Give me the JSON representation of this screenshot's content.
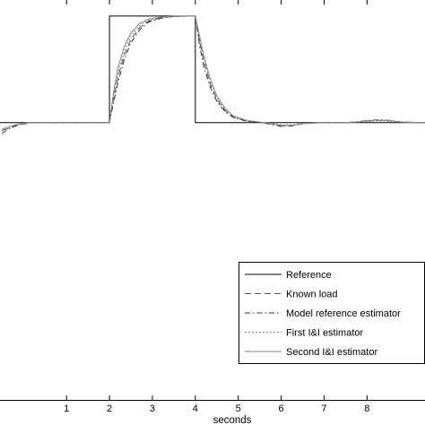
{
  "chart_data": {
    "type": "line",
    "xlabel": "seconds",
    "ylabel": "",
    "title": "",
    "xlim": [
      -0.55,
      9.35
    ],
    "ylim": [
      -2.6,
      1.15
    ],
    "xticks": [
      1,
      2,
      3,
      4,
      5,
      6,
      7,
      8
    ],
    "xtick_labels": [
      "1",
      "2",
      "3",
      "4",
      "5",
      "6",
      "7",
      "8"
    ],
    "grid": false,
    "legend_position": "bottom-right",
    "series": [
      {
        "name": "Reference",
        "style": "solid-thin",
        "x": [
          -0.55,
          2.0,
          2.0,
          4.0,
          4.0,
          9.35
        ],
        "y": [
          0,
          0,
          1,
          1,
          0,
          0
        ]
      },
      {
        "name": "Known load",
        "style": "dashed",
        "x": [
          -0.5,
          -0.3,
          -0.1,
          0.2,
          1.0,
          2.0,
          2.1,
          2.2,
          2.35,
          2.5,
          2.7,
          2.9,
          3.2,
          3.5,
          4.0,
          4.1,
          4.2,
          4.35,
          4.5,
          4.7,
          4.9,
          5.2,
          5.5,
          5.75,
          6.0,
          6.25,
          6.5,
          7.0,
          7.5,
          7.8,
          8.0,
          8.2,
          8.4,
          8.6,
          8.8,
          9.35
        ],
        "y": [
          -0.07,
          -0.05,
          -0.02,
          0,
          0,
          0,
          0.24,
          0.43,
          0.64,
          0.78,
          0.89,
          0.95,
          0.985,
          0.995,
          1.0,
          0.76,
          0.57,
          0.36,
          0.22,
          0.11,
          0.05,
          0.015,
          0.004,
          -0.01,
          -0.03,
          -0.03,
          -0.01,
          0,
          0,
          0.005,
          0.015,
          0.02,
          0.02,
          0.015,
          0.005,
          0
        ]
      },
      {
        "name": "Model reference estimator",
        "style": "dash-dot",
        "x": [
          -0.5,
          -0.35,
          -0.15,
          0.1,
          1.0,
          2.0,
          2.1,
          2.2,
          2.35,
          2.5,
          2.7,
          2.9,
          3.2,
          3.5,
          4.0,
          4.1,
          4.2,
          4.35,
          4.5,
          4.7,
          4.9,
          5.2,
          5.5,
          5.75,
          6.0,
          6.25,
          6.5,
          7.0,
          7.5,
          7.8,
          8.0,
          8.2,
          8.4,
          8.6,
          8.8,
          9.35
        ],
        "y": [
          -0.1,
          -0.06,
          -0.02,
          0,
          0,
          0,
          0.2,
          0.38,
          0.6,
          0.75,
          0.87,
          0.94,
          0.98,
          0.995,
          1.0,
          0.72,
          0.52,
          0.33,
          0.2,
          0.1,
          0.045,
          0.012,
          0.003,
          -0.015,
          -0.035,
          -0.03,
          -0.008,
          0,
          0,
          0.01,
          0.02,
          0.025,
          0.025,
          0.018,
          0.006,
          0
        ]
      },
      {
        "name": "First I&I estimator",
        "style": "dotted",
        "x": [
          -0.5,
          -0.35,
          -0.15,
          0.1,
          1.0,
          2.0,
          2.1,
          2.2,
          2.35,
          2.5,
          2.7,
          2.9,
          3.2,
          3.5,
          4.0,
          4.1,
          4.2,
          4.35,
          4.5,
          4.7,
          4.9,
          5.2,
          5.5,
          5.75,
          6.0,
          6.25,
          6.5,
          7.0,
          7.5,
          7.8,
          8.0,
          8.2,
          8.4,
          8.6,
          8.8,
          9.35
        ],
        "y": [
          -0.08,
          -0.05,
          -0.02,
          0,
          0,
          0,
          0.27,
          0.47,
          0.68,
          0.81,
          0.91,
          0.96,
          0.99,
          0.997,
          1.0,
          0.79,
          0.6,
          0.39,
          0.24,
          0.12,
          0.055,
          0.017,
          0.005,
          -0.005,
          -0.02,
          -0.02,
          -0.006,
          0,
          0,
          0.004,
          0.01,
          0.015,
          0.015,
          0.01,
          0.004,
          0
        ]
      },
      {
        "name": "Second I&I estimator",
        "style": "solid-gray",
        "x": [
          -0.5,
          -0.35,
          -0.15,
          0.1,
          1.0,
          2.0,
          2.1,
          2.2,
          2.35,
          2.5,
          2.7,
          2.9,
          3.2,
          3.5,
          4.0,
          4.1,
          4.2,
          4.35,
          4.5,
          4.7,
          4.9,
          5.2,
          5.5,
          5.75,
          6.0,
          6.25,
          6.5,
          7.0,
          7.5,
          7.8,
          8.0,
          8.2,
          8.4,
          8.6,
          8.8,
          9.35
        ],
        "y": [
          -0.06,
          -0.04,
          -0.015,
          0,
          0,
          0,
          0.3,
          0.52,
          0.72,
          0.84,
          0.93,
          0.97,
          0.99,
          0.998,
          1.0,
          0.81,
          0.62,
          0.41,
          0.25,
          0.13,
          0.06,
          0.02,
          0.006,
          -0.008,
          -0.025,
          -0.025,
          -0.008,
          0,
          0,
          0.008,
          0.018,
          0.022,
          0.022,
          0.015,
          0.005,
          0
        ]
      }
    ]
  }
}
